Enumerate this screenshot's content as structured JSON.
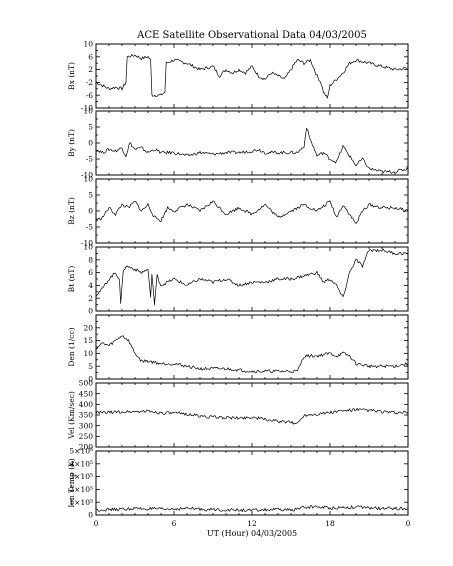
{
  "chart_data": {
    "type": "line",
    "title": "ACE Satellite Observational Data   04/03/2005",
    "xlabel": "UT (Hour)   04/03/2005",
    "x_ticks": [
      "0",
      "6",
      "12",
      "18",
      "0"
    ],
    "x_range": [
      0,
      24
    ],
    "panels": [
      {
        "name": "bx",
        "ylabel": "Bx (nT)",
        "ylim": [
          -10,
          10
        ],
        "y_ticks": [
          {
            "v": -10,
            "label": "-10"
          },
          {
            "v": -6,
            "label": "-6"
          },
          {
            "v": -2,
            "label": "-2"
          },
          {
            "v": 2,
            "label": "2"
          },
          {
            "v": 6,
            "label": "6"
          },
          {
            "v": 10,
            "label": "10"
          }
        ],
        "y_minor": [
          -8,
          -4,
          0,
          4,
          8
        ],
        "series": {
          "x": [
            0,
            0.5,
            1,
            1.5,
            2,
            2.3,
            2.4,
            3,
            3.5,
            4,
            4.2,
            4.3,
            4.6,
            5,
            5.3,
            5.4,
            6,
            7,
            8,
            9,
            9.5,
            10,
            10.5,
            11,
            11.5,
            12,
            12.5,
            13,
            13.5,
            14,
            14.5,
            15,
            15.3,
            15.5,
            16,
            16.5,
            17,
            17.3,
            17.5,
            17.8,
            18,
            18.5,
            19,
            19.5,
            20,
            21,
            22,
            23,
            24
          ],
          "y": [
            -2,
            -3,
            -4,
            -3.5,
            -4,
            -2,
            6,
            6.5,
            5.5,
            6,
            5,
            -6,
            -6,
            -6,
            -5,
            4,
            5,
            4,
            2,
            3,
            0,
            2,
            1,
            2,
            1,
            3,
            0,
            -1,
            1,
            0,
            -1,
            2,
            4,
            5,
            4,
            5,
            0,
            -2,
            -5,
            -7,
            -3,
            -1,
            1,
            4,
            5,
            4,
            3,
            2,
            2.5
          ]
        }
      },
      {
        "name": "by",
        "ylabel": "By (nT)",
        "ylim": [
          -10,
          10
        ],
        "y_ticks": [
          {
            "v": -10,
            "label": "-10"
          },
          {
            "v": -5,
            "label": "-5"
          },
          {
            "v": 0,
            "label": "0"
          },
          {
            "v": 5,
            "label": "5"
          },
          {
            "v": 10,
            "label": "10"
          }
        ],
        "y_minor": [
          -7.5,
          -2.5,
          2.5,
          7.5
        ],
        "series": {
          "x": [
            0,
            0.5,
            1,
            1.5,
            2,
            2.3,
            2.6,
            3,
            3.5,
            4,
            4.5,
            5,
            6,
            7,
            8,
            9,
            10,
            11,
            12,
            12.5,
            13,
            14,
            15,
            15.5,
            16,
            16.2,
            16.4,
            17,
            17.5,
            18,
            18.5,
            19,
            19.5,
            20,
            20.5,
            21,
            22,
            23,
            24
          ],
          "y": [
            -2,
            -3,
            -2,
            -2.5,
            -1.5,
            -4,
            0,
            -2,
            -1.5,
            -3,
            -2,
            -3,
            -3,
            -4,
            -3,
            -3.5,
            -3,
            -3,
            -2.5,
            -2,
            -3,
            -3,
            -3,
            -3,
            -1,
            5,
            2,
            -4,
            -3,
            -5,
            -6,
            -1,
            -4,
            -7,
            -5,
            -8,
            -9,
            -9,
            -8
          ]
        }
      },
      {
        "name": "bz",
        "ylabel": "Bz (nT)",
        "ylim": [
          -10,
          10
        ],
        "y_ticks": [
          {
            "v": -10,
            "label": "-10"
          },
          {
            "v": -5,
            "label": "-5"
          },
          {
            "v": 0,
            "label": "0"
          },
          {
            "v": 5,
            "label": "5"
          },
          {
            "v": 10,
            "label": "10"
          }
        ],
        "y_minor": [
          -7.5,
          -2.5,
          2.5,
          7.5
        ],
        "series": {
          "x": [
            0,
            0.5,
            1,
            1.5,
            2,
            2.5,
            3,
            3.5,
            4,
            4.5,
            5,
            5.5,
            6,
            7,
            8,
            9,
            10,
            11,
            12,
            13,
            14,
            15,
            16,
            17,
            18,
            18.5,
            19,
            19.5,
            20,
            20.5,
            21,
            22,
            23,
            24
          ],
          "y": [
            -3,
            -2,
            1,
            -1,
            2,
            1,
            3,
            0,
            2,
            -2,
            -3,
            1,
            0,
            2,
            0,
            3,
            -1,
            1,
            -1,
            2,
            -2,
            0,
            2,
            0,
            3,
            -2,
            2,
            -1,
            -4,
            0,
            2,
            1,
            1,
            0
          ]
        }
      },
      {
        "name": "bt",
        "ylabel": "Bt (nT)",
        "ylim": [
          0,
          10
        ],
        "y_ticks": [
          {
            "v": 0,
            "label": "0"
          },
          {
            "v": 2,
            "label": "2"
          },
          {
            "v": 4,
            "label": "4"
          },
          {
            "v": 6,
            "label": "6"
          },
          {
            "v": 8,
            "label": "8"
          },
          {
            "v": 10,
            "label": "10"
          }
        ],
        "y_minor": [
          1,
          3,
          5,
          7,
          9
        ],
        "series": {
          "x": [
            0,
            0.5,
            1,
            1.5,
            1.8,
            1.9,
            2.1,
            2.4,
            3,
            3.5,
            4,
            4.2,
            4.3,
            4.5,
            4.7,
            5,
            6,
            7,
            8,
            9,
            10,
            11,
            12,
            13,
            14,
            15,
            16,
            17,
            17.5,
            18,
            18.5,
            19,
            19.5,
            20,
            20.5,
            21,
            22,
            23,
            24
          ],
          "y": [
            2.5,
            3.5,
            5,
            6,
            5,
            1,
            6.5,
            7,
            6.5,
            6,
            6.5,
            2,
            6,
            1,
            5.5,
            4,
            5,
            4,
            5,
            4.5,
            5,
            4,
            4.5,
            4.5,
            5,
            5,
            5.5,
            6,
            4.5,
            5,
            4,
            2,
            6,
            8,
            7,
            9.5,
            9.5,
            9,
            9
          ]
        }
      },
      {
        "name": "den",
        "ylabel": "Den (1/cc)",
        "ylim": [
          0,
          25
        ],
        "y_ticks": [
          {
            "v": 0,
            "label": "0"
          },
          {
            "v": 5,
            "label": "5"
          },
          {
            "v": 10,
            "label": "10"
          },
          {
            "v": 15,
            "label": "15"
          },
          {
            "v": 20,
            "label": "20"
          }
        ],
        "y_minor": [
          2.5,
          7.5,
          12.5,
          17.5,
          22.5
        ],
        "series": {
          "x": [
            0,
            0.5,
            1,
            1.5,
            2,
            2.5,
            3,
            3.5,
            4,
            5,
            6,
            7,
            8,
            9,
            10,
            11,
            12,
            13,
            14,
            15,
            15.5,
            16,
            17,
            18,
            18.5,
            19,
            19.5,
            20,
            21,
            22,
            23,
            24
          ],
          "y": [
            12,
            14,
            13,
            15,
            17,
            15,
            10,
            7,
            7,
            6,
            6,
            5,
            4,
            4,
            4,
            3.5,
            3,
            3,
            3,
            3,
            3,
            9,
            9,
            10,
            9,
            10,
            9,
            6,
            5,
            5,
            5,
            6
          ]
        }
      },
      {
        "name": "vel",
        "ylabel": "Vel (Km/sec)",
        "ylim": [
          200,
          500
        ],
        "y_ticks": [
          {
            "v": 200,
            "label": "200"
          },
          {
            "v": 250,
            "label": "250"
          },
          {
            "v": 300,
            "label": "300"
          },
          {
            "v": 350,
            "label": "350"
          },
          {
            "v": 400,
            "label": "400"
          },
          {
            "v": 450,
            "label": "450"
          },
          {
            "v": 500,
            "label": "500"
          }
        ],
        "y_minor": [],
        "series": {
          "x": [
            0,
            1,
            2,
            3,
            4,
            5,
            6,
            7,
            8,
            9,
            10,
            11,
            12,
            13,
            14,
            15,
            15.5,
            16,
            17,
            18,
            19,
            20,
            21,
            22,
            23,
            24
          ],
          "y": [
            360,
            362,
            365,
            366,
            368,
            360,
            358,
            355,
            345,
            340,
            338,
            335,
            340,
            330,
            320,
            315,
            310,
            350,
            355,
            362,
            370,
            375,
            372,
            365,
            360,
            362
          ]
        }
      },
      {
        "name": "temp",
        "ylabel": "Ion Temp (K)",
        "ylim": [
          0,
          500000
        ],
        "y_ticks": [
          {
            "v": 0,
            "label": "0"
          },
          {
            "v": 100000,
            "label": "1×10⁵"
          },
          {
            "v": 200000,
            "label": "2×10⁵"
          },
          {
            "v": 300000,
            "label": "3×10⁵"
          },
          {
            "v": 400000,
            "label": "4×10⁵"
          },
          {
            "v": 500000,
            "label": "5×10⁵"
          }
        ],
        "y_minor": [],
        "series": {
          "x": [
            0,
            1,
            2,
            3,
            4,
            5,
            6,
            7,
            8,
            9,
            10,
            11,
            12,
            13,
            14,
            15,
            16,
            17,
            18,
            19,
            20,
            21,
            22,
            23,
            24
          ],
          "y": [
            40000,
            42000,
            45000,
            50000,
            48000,
            45000,
            47000,
            52000,
            45000,
            42000,
            40000,
            38000,
            36000,
            40000,
            42000,
            38000,
            60000,
            65000,
            55000,
            60000,
            62000,
            55000,
            50000,
            52000,
            48000
          ]
        }
      }
    ]
  }
}
